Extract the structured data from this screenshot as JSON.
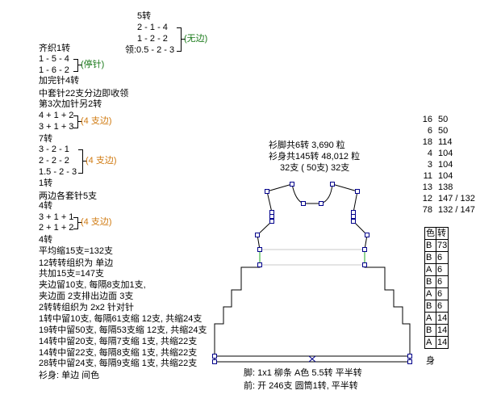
{
  "neck": {
    "rows": "5转",
    "l1": "2 - 1 - 4",
    "l2": "1 - 2 - 2",
    "l3": "领:0.5 - 2 - 3",
    "note": "(无边)"
  },
  "left": [
    {
      "text": "齐织1转"
    },
    {
      "text": "1 - 5 - 4"
    },
    {
      "text": "1 - 6 - 2"
    },
    {
      "text": "加完针4转"
    },
    {
      "text": "中套针22支分边即收领"
    },
    {
      "text": "第3次加针另2转"
    },
    {
      "text": "4 + 1 + 2"
    },
    {
      "text": "3 + 1 + 3"
    },
    {
      "text": "7转"
    },
    {
      "text": "3 - 2 - 1"
    },
    {
      "text": "2 - 2 - 2"
    },
    {
      "text": "1.5 - 2 - 3"
    },
    {
      "text": "1转"
    },
    {
      "text": "两边各套针5支"
    },
    {
      "text": "4转"
    },
    {
      "text": "3 + 1 + 1"
    },
    {
      "text": "2 + 1 + 2"
    },
    {
      "text": "4转"
    },
    {
      "text": "平均缩15支=132支"
    },
    {
      "text": "12转转组织为 单边"
    },
    {
      "text": "     共加15支=147支"
    },
    {
      "text": "夹边留10支, 每隔8支加1支,"
    },
    {
      "text": "夹边面 2支排出边面 3支"
    },
    {
      "text": "2转转组织为 2x2 针对针"
    },
    {
      "text": "1转中留10支, 每隔61支缩 12支, 共缩24支"
    },
    {
      "text": "19转中留50支, 每隔53支缩 12支, 共缩24支"
    },
    {
      "text": "14转中留20支, 每隔7支缩 1支, 共缩22支"
    },
    {
      "text": "14转中留22支, 每隔8支缩 1支, 共缩22支"
    },
    {
      "text": "28转中留24支, 每隔9支缩 1支, 共缩22支"
    },
    {
      "text": "衫身: 单边 间色"
    }
  ],
  "notes": {
    "stop": "(停针)",
    "edge4a": "(4 支边)",
    "edge4b": "(4 支边)",
    "edge4c": "(4 支边)"
  },
  "summary": {
    "l1": "衫脚共6转 3,690 粒",
    "l2": "衫身共145转 48,012 粒",
    "l3": "32支 ( 50支) 32支"
  },
  "footer": {
    "l1": "脚: 1x1  柳条   A色 5.5转  平半转",
    "l2": "前: 开 246支 圆筒1转, 平半转"
  },
  "counts": [
    [
      "16",
      "50"
    ],
    [
      "6",
      "50"
    ],
    [
      "18",
      "114"
    ],
    [
      "4",
      "104"
    ],
    [
      "3",
      "104"
    ],
    [
      "11",
      "104"
    ],
    [
      "13",
      "138"
    ],
    [
      "12",
      "147 / 132"
    ],
    [
      "78",
      "132 / 147"
    ]
  ],
  "color_table": {
    "headers": [
      "色",
      "转"
    ],
    "rows": [
      [
        "B",
        "73"
      ],
      [
        "B",
        "6"
      ],
      [
        "A",
        "6"
      ],
      [
        "B",
        "6"
      ],
      [
        "A",
        "6"
      ],
      [
        "B",
        "6"
      ],
      [
        "A",
        "14"
      ],
      [
        "B",
        "14"
      ],
      [
        "A",
        "14"
      ]
    ],
    "caption": "身"
  },
  "colors": {
    "outline": "#000000",
    "handle": "#00008b",
    "green": "#22aa22",
    "guide": "#c8c8c8",
    "note_green": "#1a7a1a",
    "note_orange": "#d07a10"
  }
}
